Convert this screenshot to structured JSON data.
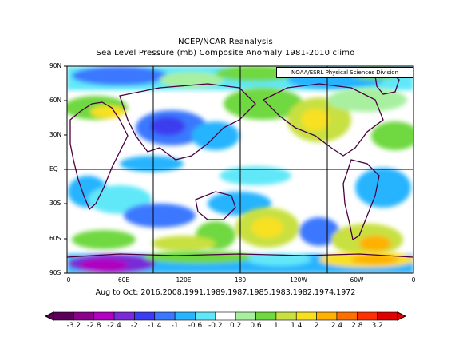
{
  "titles": {
    "line1": "NCEP/NCAR Reanalysis",
    "line2": "Sea Level Pressure (mb) Composite Anomaly 1981-2010 climo"
  },
  "credit": "NOAA/ESRL Physical Sciences Division",
  "subtitle": "Aug to Oct: 2016,2008,1991,1989,1987,1985,1983,1982,1974,1972",
  "axes": {
    "lat_labels": [
      "90N",
      "60N",
      "30N",
      "EQ",
      "30S",
      "60S",
      "90S"
    ],
    "lon_labels": [
      "0",
      "60E",
      "120E",
      "180",
      "120W",
      "60W",
      "0"
    ]
  },
  "colorbar": {
    "labels": [
      "-3.2",
      "-2.8",
      "-2.4",
      "-2",
      "-1.4",
      "-1",
      "-0.6",
      "-0.2",
      "0.2",
      "0.6",
      "1",
      "1.4",
      "2",
      "2.4",
      "2.8",
      "3.2"
    ],
    "colors": [
      "#5a005a",
      "#8a008a",
      "#b000c0",
      "#7a2ad6",
      "#3c3cf0",
      "#3a78ff",
      "#28b4ff",
      "#60e8f8",
      "#ffffff",
      "#a8f0a0",
      "#70d840",
      "#c8e040",
      "#f8e020",
      "#ffb000",
      "#ff7000",
      "#ff3000",
      "#e00000"
    ]
  },
  "icons": {
    "colorbar_left": "triangle-left-icon",
    "colorbar_right": "triangle-right-icon"
  }
}
